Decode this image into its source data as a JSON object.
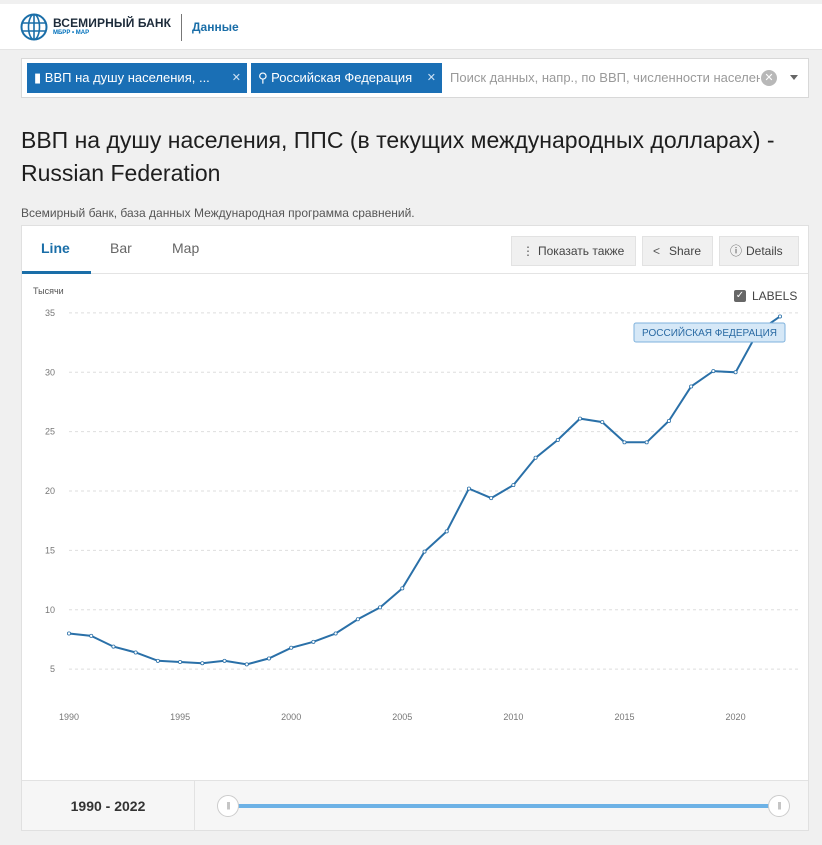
{
  "header": {
    "bank_name": "ВСЕМИРНЫЙ БАНК",
    "bank_sub": "МБРР • МАР",
    "link": "Данные"
  },
  "search": {
    "chip_indicator": "ВВП на душу населения, ...",
    "chip_country": "Российская Федерация",
    "placeholder": "Поиск данных, напр., по ВВП, численности населения"
  },
  "page": {
    "title": "ВВП на душу населения, ППС (в текущих международных долларах) - Russian Federation",
    "source": "Всемирный банк, база данных Международная программа сравнений."
  },
  "tabs": [
    "Line",
    "Bar",
    "Map"
  ],
  "buttons": {
    "show_also": "Показать также",
    "share": "Share",
    "details": "Details"
  },
  "labels_toggle": "LABELS",
  "colors": {
    "line": "#2a70a8",
    "accent": "#1a6ea8",
    "chip": "#1a6fb5"
  },
  "range": {
    "start": "1990",
    "end": "2022",
    "label": "1990 - 2022"
  },
  "chart_data": {
    "type": "line",
    "ylabel": "Тысячи",
    "ylim": [
      4,
      36
    ],
    "yticks": [
      5,
      10,
      15,
      20,
      25,
      30,
      35
    ],
    "xticks": [
      1990,
      1995,
      2000,
      2005,
      2010,
      2015,
      2020
    ],
    "xlim": [
      1990,
      2022
    ],
    "grid": true,
    "series": [
      {
        "name": "РОССИЙСКАЯ ФЕДЕРАЦИЯ",
        "x": [
          1990,
          1991,
          1992,
          1993,
          1994,
          1995,
          1996,
          1997,
          1998,
          1999,
          2000,
          2001,
          2002,
          2003,
          2004,
          2005,
          2006,
          2007,
          2008,
          2009,
          2010,
          2011,
          2012,
          2013,
          2014,
          2015,
          2016,
          2017,
          2018,
          2019,
          2020,
          2021,
          2022
        ],
        "values": [
          8.0,
          7.8,
          6.9,
          6.4,
          5.7,
          5.6,
          5.5,
          5.7,
          5.4,
          5.9,
          6.8,
          7.3,
          8.0,
          9.2,
          10.2,
          11.8,
          14.9,
          16.6,
          20.2,
          19.4,
          20.5,
          22.8,
          24.3,
          26.1,
          25.8,
          24.1,
          24.1,
          25.9,
          28.8,
          30.1,
          30.0,
          33.4,
          34.7
        ]
      }
    ]
  }
}
